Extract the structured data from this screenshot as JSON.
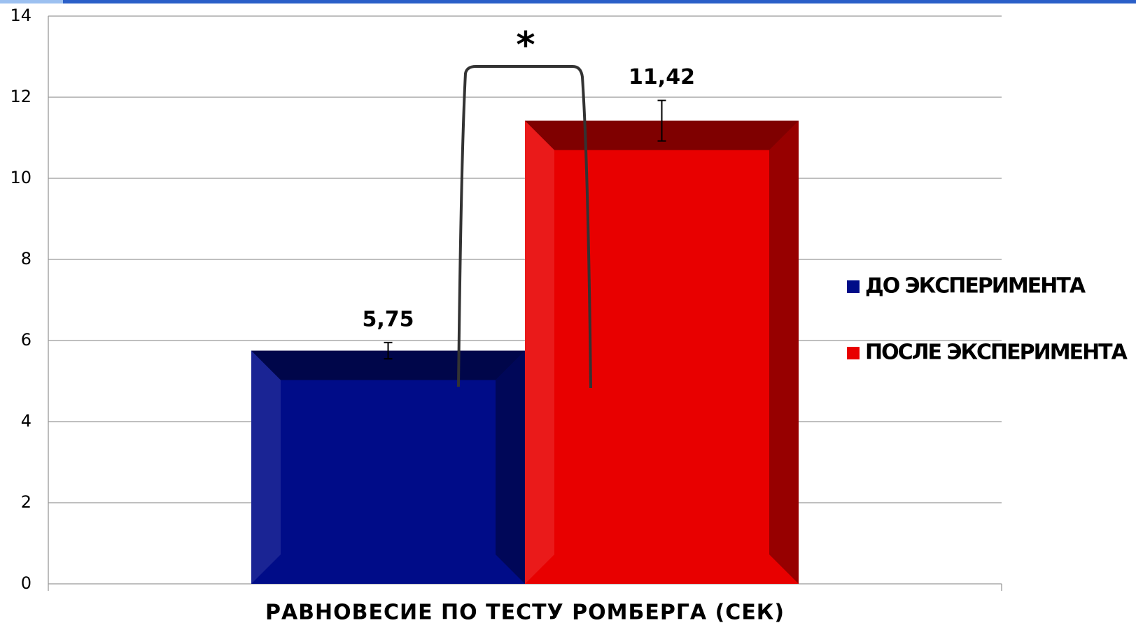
{
  "chart_data": {
    "type": "bar",
    "categories": [
      "РАВНОВЕСИЕ  ПО ТЕСТУ РОМБЕРГА (СЕК)"
    ],
    "series": [
      {
        "name": "ДО ЭКСПЕРИМЕНТА",
        "color": "#000c88",
        "values": [
          5.75
        ],
        "value_labels": [
          "5,75"
        ],
        "errors": [
          0.2
        ]
      },
      {
        "name": "ПОСЛЕ ЭКСПЕРИМЕНТА",
        "color": "#e80000",
        "values": [
          11.42
        ],
        "value_labels": [
          "11,42"
        ],
        "errors": [
          0.5
        ]
      }
    ],
    "annotation": "*",
    "ylim": [
      0,
      14
    ],
    "yticks": [
      0,
      2,
      4,
      6,
      8,
      10,
      12,
      14
    ],
    "grid": true,
    "legend": "right"
  }
}
